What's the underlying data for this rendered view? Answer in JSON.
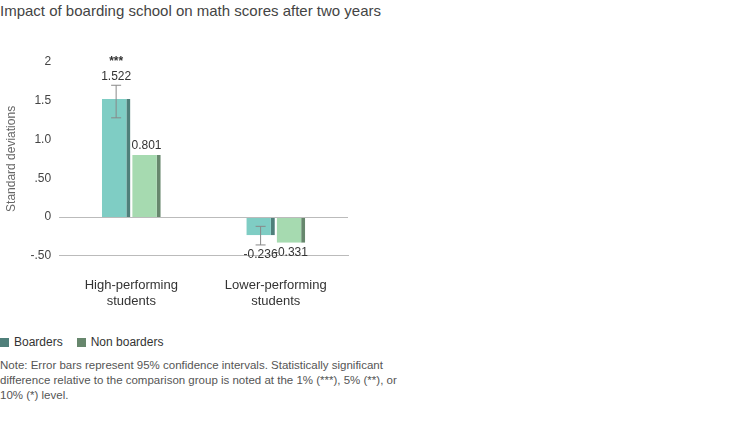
{
  "chart_data": {
    "type": "bar",
    "title": "Impact of boarding school on math scores after two years",
    "y_label": "Standard deviations",
    "categories": [
      "High-performing students",
      "Lower-performing students"
    ],
    "series": [
      {
        "name": "Boarders",
        "color": "#7fcdc4",
        "values": [
          1.522,
          -0.236
        ],
        "error_bars": [
          [
            1.28,
            1.7
          ],
          [
            -0.36,
            -0.12
          ]
        ],
        "significance": [
          "***",
          null
        ]
      },
      {
        "name": "Non boarders",
        "color": "#a6dab0",
        "values": [
          0.801,
          -0.331
        ]
      }
    ],
    "ylim": [
      -0.5,
      2
    ],
    "yticks": [
      {
        "value": -0.5,
        "label": "-.50"
      },
      0,
      {
        "value": 0.5,
        "label": ".50"
      },
      {
        "value": 1,
        "label": "1.0"
      },
      1.5,
      2
    ],
    "grid": false,
    "legend": "bottom-left",
    "data_labels": true,
    "note": "Note: Error bars represent 95% confidence intervals. Statistically significant difference relative to the comparison group is noted at the 1% (***), 5% (**), or 10% (*) level."
  }
}
